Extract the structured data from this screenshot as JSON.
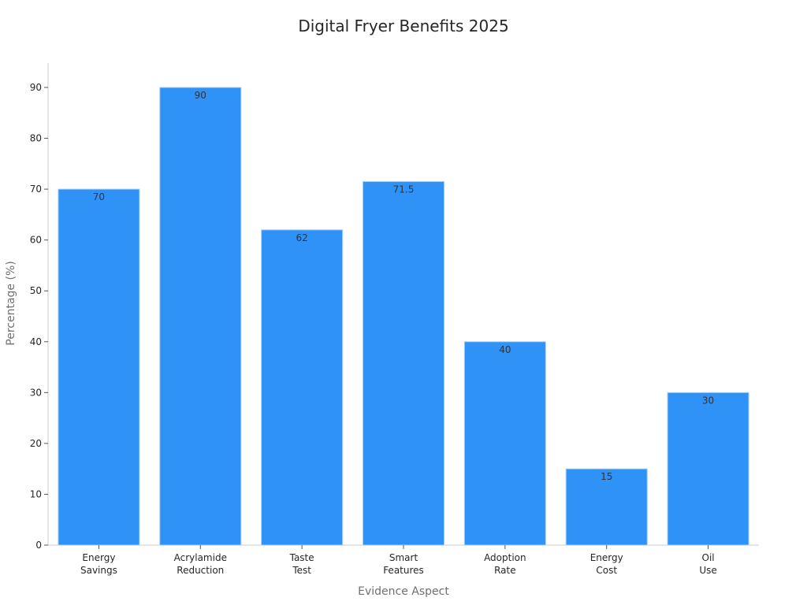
{
  "chart_data": {
    "type": "bar",
    "title": "Digital Fryer Benefits 2025",
    "xlabel": "Evidence Aspect",
    "ylabel": "Percentage (%)",
    "categories": [
      [
        "Energy",
        "Savings"
      ],
      [
        "Acrylamide",
        "Reduction"
      ],
      [
        "Taste",
        "Test"
      ],
      [
        "Smart",
        "Features"
      ],
      [
        "Adoption",
        "Rate"
      ],
      [
        "Energy",
        "Cost"
      ],
      [
        "Oil",
        "Use"
      ]
    ],
    "values": [
      70,
      90,
      62,
      71.5,
      40,
      15,
      30
    ],
    "value_labels": [
      "70",
      "90",
      "62",
      "71.5",
      "40",
      "15",
      "30"
    ],
    "ylim": [
      0,
      95
    ],
    "yticks": [
      0,
      10,
      20,
      30,
      40,
      50,
      60,
      70,
      80,
      90
    ],
    "bar_color": "#2f92f7",
    "bar_edge_color": "#a9d0f7",
    "grid": false,
    "legend": "none"
  }
}
